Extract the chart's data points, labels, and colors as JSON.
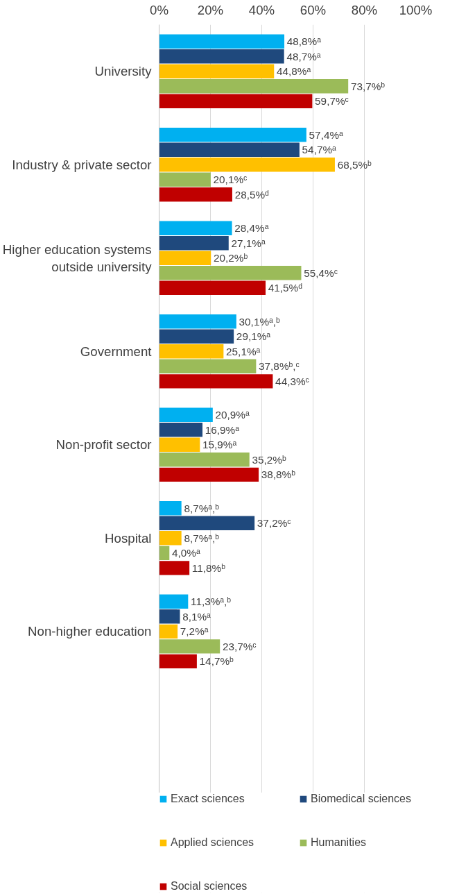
{
  "chart_data": {
    "type": "bar",
    "orientation": "horizontal",
    "categories": [
      "University",
      "Industry & private sector",
      "Higher education systems outside university",
      "Government",
      "Non-profit sector",
      "Hospital",
      "Non-higher education"
    ],
    "series": [
      {
        "name": "Exact sciences",
        "color": "#00b0f0",
        "values": [
          48.8,
          57.4,
          28.4,
          30.1,
          20.9,
          8.7,
          11.3
        ],
        "value_labels": [
          "48,8%ᵃ",
          "57,4%ᵃ",
          "28,4%ᵃ",
          "30,1%ᵃ,ᵇ",
          "20,9%ᵃ",
          "8,7%ᵃ,ᵇ",
          "11,3%ᵃ,ᵇ"
        ]
      },
      {
        "name": "Biomedical sciences",
        "color": "#1f497d",
        "values": [
          48.7,
          54.7,
          27.1,
          29.1,
          16.9,
          37.2,
          8.1
        ],
        "value_labels": [
          "48,7%ᵃ",
          "54,7%ᵃ",
          "27,1%ᵃ",
          "29,1%ᵃ",
          "16,9%ᵃ",
          "37,2%ᶜ",
          "8,1%ᵃ"
        ]
      },
      {
        "name": "Applied sciences",
        "color": "#ffc000",
        "values": [
          44.8,
          68.5,
          20.2,
          25.1,
          15.9,
          8.7,
          7.2
        ],
        "value_labels": [
          "44,8%ᵃ",
          "68,5%ᵇ",
          "20,2%ᵇ",
          "25,1%ᵃ",
          "15,9%ᵃ",
          "8,7%ᵃ,ᵇ",
          "7,2%ᵃ"
        ]
      },
      {
        "name": "Humanities",
        "color": "#9bbb59",
        "values": [
          73.7,
          20.1,
          55.4,
          37.8,
          35.2,
          4.0,
          23.7
        ],
        "value_labels": [
          "73,7%ᵇ",
          "20,1%ᶜ",
          "55,4%ᶜ",
          "37,8%ᵇ,ᶜ",
          "35,2%ᵇ",
          "4,0%ᵃ",
          "23,7%ᶜ"
        ]
      },
      {
        "name": "Social sciences",
        "color": "#c00000",
        "values": [
          59.7,
          28.5,
          41.5,
          44.3,
          38.8,
          11.8,
          14.7
        ],
        "value_labels": [
          "59,7%ᶜ",
          "28,5%ᵈ",
          "41,5%ᵈ",
          "44,3%ᶜ",
          "38,8%ᵇ",
          "11,8%ᵇ",
          "14,7%ᵇ"
        ]
      }
    ],
    "xlim": [
      0,
      100
    ],
    "xticks": [
      {
        "value": 0,
        "label": "0%"
      },
      {
        "value": 20,
        "label": "20%"
      },
      {
        "value": 40,
        "label": "40%"
      },
      {
        "value": 60,
        "label": "60%"
      },
      {
        "value": 80,
        "label": "80%"
      },
      {
        "value": 100,
        "label": "100%"
      }
    ],
    "grid": "x",
    "legend": "bottom"
  }
}
